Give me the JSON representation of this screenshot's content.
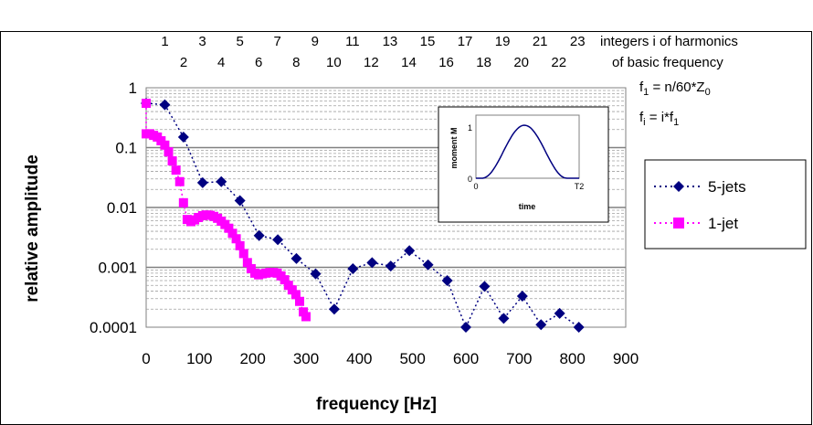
{
  "chart_data": {
    "type": "scatter",
    "xlabel": "frequency [Hz]",
    "ylabel": "relative amplitude",
    "xlim": [
      0,
      900
    ],
    "ylim": [
      0.0001,
      1
    ],
    "yscale": "log",
    "x_ticks": [
      0,
      100,
      200,
      300,
      400,
      500,
      600,
      700,
      800,
      900
    ],
    "y_ticks": [
      {
        "value": 1,
        "label": "1"
      },
      {
        "value": 0.1,
        "label": "0.1"
      },
      {
        "value": 0.01,
        "label": "0.01"
      },
      {
        "value": 0.001,
        "label": "0.001"
      },
      {
        "value": 0.0001,
        "label": "0.0001"
      }
    ],
    "grid": true,
    "harmonics": {
      "odd": [
        "1",
        "3",
        "5",
        "7",
        "9",
        "11",
        "13",
        "15",
        "17",
        "19",
        "21",
        "23"
      ],
      "even": [
        "2",
        "4",
        "6",
        "8",
        "10",
        "12",
        "14",
        "16",
        "18",
        "20",
        "22"
      ],
      "label_line1": "integers i of harmonics",
      "label_line2": "of basic frequency"
    },
    "formulas": {
      "f1_main": "f",
      "f1_sub": "1",
      "f1_rhs_main": " = n/60*Z",
      "f1_rhs_sub": "0",
      "fi_main": "f",
      "fi_sub": "i",
      "fi_rhs_main": " = i*f",
      "fi_rhs_sub": "1"
    },
    "inset": {
      "ylabel": "moment  M",
      "xlabel": "time",
      "y_ticks": [
        "1",
        "0"
      ],
      "x_ticks": [
        "0",
        "T2"
      ]
    },
    "series": [
      {
        "name": "5-jets",
        "color": "#000080",
        "marker": "diamond",
        "line": "dotted",
        "points": [
          [
            0,
            0.55
          ],
          [
            35,
            0.52
          ],
          [
            70,
            0.15
          ],
          [
            106,
            0.026
          ],
          [
            141,
            0.027
          ],
          [
            176,
            0.013
          ],
          [
            212,
            0.0034
          ],
          [
            247,
            0.0029
          ],
          [
            282,
            0.0014
          ],
          [
            318,
            0.00078
          ],
          [
            353,
            0.0002
          ],
          [
            388,
            0.00095
          ],
          [
            424,
            0.0012
          ],
          [
            459,
            0.00105
          ],
          [
            494,
            0.0019
          ],
          [
            529,
            0.0011
          ],
          [
            565,
            0.0006
          ],
          [
            600,
            0.0001
          ],
          [
            635,
            0.00048
          ],
          [
            671,
            0.00014
          ],
          [
            706,
            0.00033
          ],
          [
            741,
            0.00011
          ],
          [
            776,
            0.00017
          ],
          [
            812,
            0.0001
          ]
        ]
      },
      {
        "name": "1-jet",
        "color": "#ff00ff",
        "marker": "square",
        "line": "dotted",
        "points": [
          [
            0,
            0.55
          ],
          [
            0,
            0.17
          ],
          [
            7,
            0.17
          ],
          [
            14,
            0.16
          ],
          [
            21,
            0.15
          ],
          [
            28,
            0.13
          ],
          [
            35,
            0.11
          ],
          [
            42,
            0.085
          ],
          [
            49,
            0.06
          ],
          [
            56,
            0.042
          ],
          [
            63,
            0.027
          ],
          [
            70,
            0.012
          ],
          [
            77,
            0.0063
          ],
          [
            84,
            0.0058
          ],
          [
            91,
            0.0062
          ],
          [
            98,
            0.0068
          ],
          [
            106,
            0.0073
          ],
          [
            113,
            0.0075
          ],
          [
            120,
            0.0074
          ],
          [
            127,
            0.0071
          ],
          [
            134,
            0.0066
          ],
          [
            141,
            0.0059
          ],
          [
            148,
            0.0052
          ],
          [
            155,
            0.0045
          ],
          [
            162,
            0.0037
          ],
          [
            169,
            0.003
          ],
          [
            176,
            0.0023
          ],
          [
            183,
            0.0017
          ],
          [
            190,
            0.0012
          ],
          [
            197,
            0.00095
          ],
          [
            204,
            0.0008
          ],
          [
            211,
            0.00075
          ],
          [
            218,
            0.00078
          ],
          [
            225,
            0.0008
          ],
          [
            232,
            0.00082
          ],
          [
            239,
            0.00082
          ],
          [
            246,
            0.0008
          ],
          [
            253,
            0.00072
          ],
          [
            260,
            0.00062
          ],
          [
            267,
            0.0005
          ],
          [
            274,
            0.00042
          ],
          [
            281,
            0.00035
          ],
          [
            288,
            0.00027
          ],
          [
            295,
            0.00018
          ],
          [
            300,
            0.00015
          ]
        ]
      }
    ]
  }
}
